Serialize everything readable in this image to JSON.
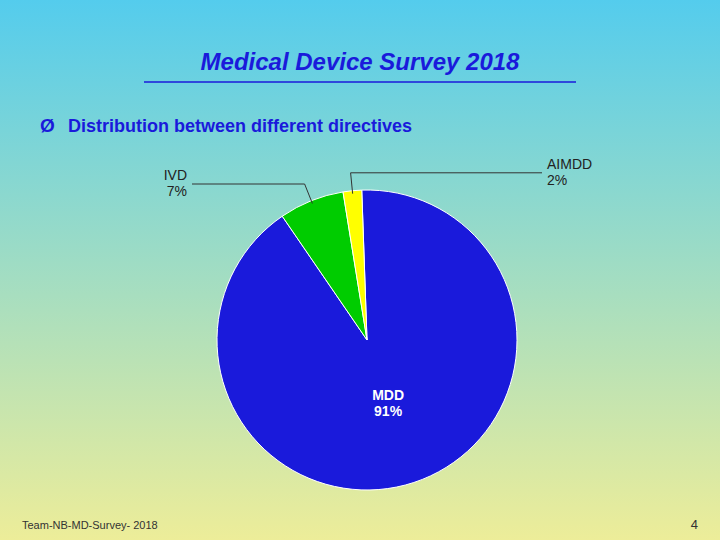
{
  "chart_data": {
    "type": "pie",
    "title": "Medical Device Survey 2018",
    "subtitle": "Distribution between different directives",
    "annotations": [
      "Ø",
      "Team-NB-MD-Survey- 2018",
      "4"
    ],
    "categories": [
      "MDD",
      "IVD",
      "AIMDD"
    ],
    "values": [
      91,
      7,
      2
    ],
    "value_labels": [
      "91%",
      "7%",
      "2%"
    ],
    "colors": [
      "#1a1adb",
      "#00cc00",
      "#ffff00"
    ],
    "data_labels": true
  }
}
